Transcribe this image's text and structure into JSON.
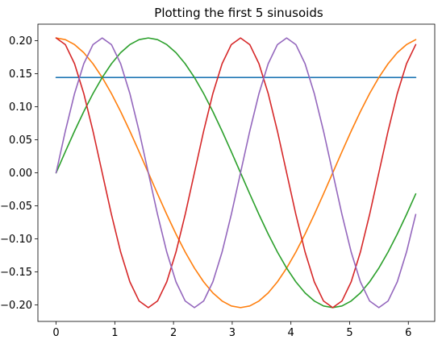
{
  "chart_data": {
    "type": "line",
    "title": "Plotting the first 5 sinusoids",
    "xlabel": "",
    "ylabel": "",
    "xlim": [
      -0.31,
      6.45
    ],
    "ylim": [
      -0.225,
      0.225
    ],
    "x_ticks": [
      0,
      1,
      2,
      3,
      4,
      5,
      6
    ],
    "x_tick_labels": [
      "0",
      "1",
      "2",
      "3",
      "4",
      "5",
      "6"
    ],
    "y_ticks": [
      -0.2,
      -0.15,
      -0.1,
      -0.05,
      0.0,
      0.05,
      0.1,
      0.15,
      0.2
    ],
    "y_tick_labels": [
      "−0.20",
      "−0.15",
      "−0.10",
      "−0.05",
      "0.00",
      "0.05",
      "0.10",
      "0.15",
      "0.20"
    ],
    "x": [
      0,
      0.1571,
      0.3142,
      0.4712,
      0.6283,
      0.7854,
      0.9425,
      1.0996,
      1.2566,
      1.4137,
      1.5708,
      1.7279,
      1.885,
      2.042,
      2.1991,
      2.3562,
      2.5133,
      2.6704,
      2.8274,
      2.9845,
      3.1416,
      3.2987,
      3.4558,
      3.6128,
      3.7699,
      3.927,
      4.0841,
      4.2412,
      4.3982,
      4.5553,
      4.7124,
      4.8695,
      5.0265,
      5.1836,
      5.3407,
      5.4978,
      5.6549,
      5.8119,
      5.969,
      6.1261
    ],
    "series": [
      {
        "color": "#1f77b4",
        "values": [
          0.1443,
          0.1443,
          0.1443,
          0.1443,
          0.1443,
          0.1443,
          0.1443,
          0.1443,
          0.1443,
          0.1443,
          0.1443,
          0.1443,
          0.1443,
          0.1443,
          0.1443,
          0.1443,
          0.1443,
          0.1443,
          0.1443,
          0.1443,
          0.1443,
          0.1443,
          0.1443,
          0.1443,
          0.1443,
          0.1443,
          0.1443,
          0.1443,
          0.1443,
          0.1443,
          0.1443,
          0.1443,
          0.1443,
          0.1443,
          0.1443,
          0.1443,
          0.1443,
          0.1443,
          0.1443,
          0.1443
        ]
      },
      {
        "color": "#ff7f0e",
        "values": [
          0.2041,
          0.2016,
          0.1941,
          0.1819,
          0.1651,
          0.1443,
          0.12,
          0.0927,
          0.0631,
          0.0319,
          0.0,
          -0.0319,
          -0.0631,
          -0.0927,
          -0.12,
          -0.1443,
          -0.1651,
          -0.1819,
          -0.1941,
          -0.2016,
          -0.2041,
          -0.2016,
          -0.1941,
          -0.1819,
          -0.1651,
          -0.1443,
          -0.12,
          -0.0927,
          -0.0631,
          -0.0319,
          0.0,
          0.0319,
          0.0631,
          0.0927,
          0.12,
          0.1443,
          0.1651,
          0.1819,
          0.1941,
          0.2016
        ]
      },
      {
        "color": "#2ca02c",
        "values": [
          0.0,
          0.0319,
          0.0631,
          0.0927,
          0.12,
          0.1443,
          0.1651,
          0.1819,
          0.1941,
          0.2016,
          0.2041,
          0.2016,
          0.1941,
          0.1819,
          0.1651,
          0.1443,
          0.12,
          0.0927,
          0.0631,
          0.0319,
          0.0,
          -0.0319,
          -0.0631,
          -0.0927,
          -0.12,
          -0.1443,
          -0.1651,
          -0.1819,
          -0.1941,
          -0.2016,
          -0.2041,
          -0.2016,
          -0.1941,
          -0.1819,
          -0.1651,
          -0.1443,
          -0.12,
          -0.0927,
          -0.0631,
          -0.0319
        ]
      },
      {
        "color": "#d62728",
        "values": [
          0.2041,
          0.1941,
          0.1651,
          0.12,
          0.0631,
          0.0,
          -0.0631,
          -0.12,
          -0.1651,
          -0.1941,
          -0.2041,
          -0.1941,
          -0.1651,
          -0.12,
          -0.0631,
          0.0,
          0.0631,
          0.12,
          0.1651,
          0.1941,
          0.2041,
          0.1941,
          0.1651,
          0.12,
          0.0631,
          0.0,
          -0.0631,
          -0.12,
          -0.1651,
          -0.1941,
          -0.2041,
          -0.1941,
          -0.1651,
          -0.12,
          -0.0631,
          0.0,
          0.0631,
          0.12,
          0.1651,
          0.1941
        ]
      },
      {
        "color": "#9467bd",
        "values": [
          0.0,
          0.0631,
          0.12,
          0.1651,
          0.1941,
          0.2041,
          0.1941,
          0.1651,
          0.12,
          0.0631,
          0.0,
          -0.0631,
          -0.12,
          -0.1651,
          -0.1941,
          -0.2041,
          -0.1941,
          -0.1651,
          -0.12,
          -0.0631,
          0.0,
          0.0631,
          0.12,
          0.1651,
          0.1941,
          0.2041,
          0.1941,
          0.1651,
          0.12,
          0.0631,
          0.0,
          -0.0631,
          -0.12,
          -0.1651,
          -0.1941,
          -0.2041,
          -0.1941,
          -0.1651,
          -0.12,
          -0.0631
        ]
      }
    ]
  }
}
